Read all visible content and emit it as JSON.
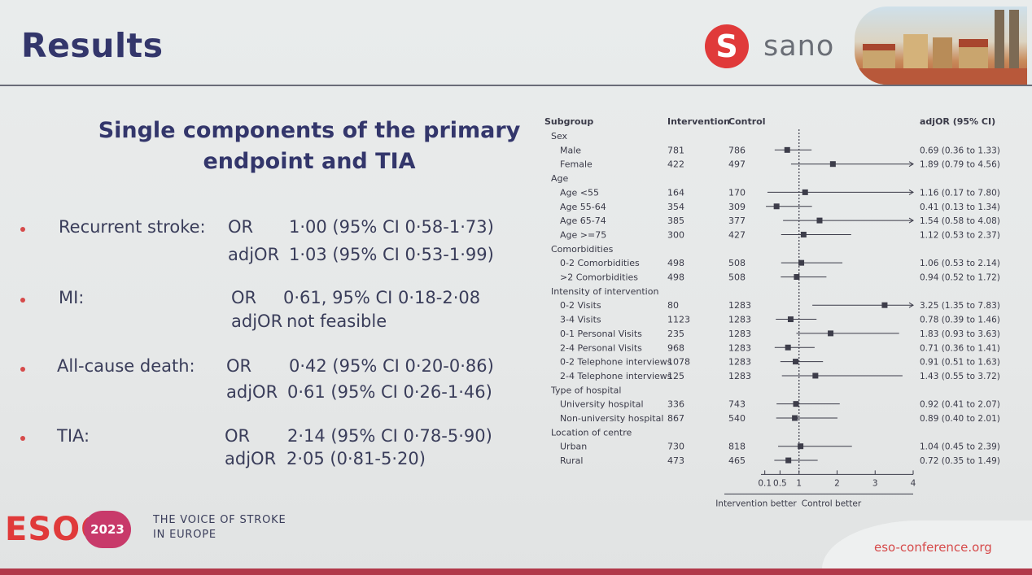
{
  "header": {
    "title": "Results",
    "brand_mark": "S",
    "brand_name": "sano"
  },
  "subtitle_line1": "Single components of the primary",
  "subtitle_line2": "endpoint and TIA",
  "bullets": [
    {
      "label": "Recurrent stroke:",
      "rows": [
        {
          "kind": "OR",
          "value": "1·00 (95% CI 0·58-1·73)"
        },
        {
          "kind": "adjOR",
          "value": "1·03 (95% CI 0·53-1·99)"
        }
      ]
    },
    {
      "label": "MI:",
      "rows": [
        {
          "kind": "OR",
          "value": "0·61, 95% CI 0·18-2·08"
        },
        {
          "kind": "adjOR",
          "value": "not feasible"
        }
      ]
    },
    {
      "label": "All-cause death:",
      "rows": [
        {
          "kind": "OR",
          "value": "0·42 (95% CI 0·20-0·86)"
        },
        {
          "kind": "adjOR",
          "value": "0·61 (95% CI 0·26-1·46)"
        }
      ]
    },
    {
      "label": "TIA:",
      "rows": [
        {
          "kind": "OR",
          "value": "2·14 (95% CI 0·78-5·90)"
        },
        {
          "kind": "adjOR",
          "value": "2·05 (0·81-5·20)"
        }
      ]
    }
  ],
  "chart_data": {
    "type": "forest",
    "columns": {
      "subgroup": "Subgroup",
      "intervention": "Intervention",
      "control": "Control",
      "estimate": "adjOR (95% CI)"
    },
    "rows": [
      {
        "kind": "header",
        "label": "Sex"
      },
      {
        "kind": "item",
        "label": "Male",
        "intervention": "781",
        "control": "786",
        "or": 0.69,
        "lo": 0.36,
        "hi": 1.33,
        "text": "0.69 (0.36 to 1.33)"
      },
      {
        "kind": "item",
        "label": "Female",
        "intervention": "422",
        "control": "497",
        "or": 1.89,
        "lo": 0.79,
        "hi": 4.56,
        "text": "1.89 (0.79 to 4.56)"
      },
      {
        "kind": "header",
        "label": "Age"
      },
      {
        "kind": "item",
        "label": "Age <55",
        "intervention": "164",
        "control": "170",
        "or": 1.16,
        "lo": 0.17,
        "hi": 7.8,
        "text": "1.16 (0.17 to 7.80)"
      },
      {
        "kind": "item",
        "label": "Age 55-64",
        "intervention": "354",
        "control": "309",
        "or": 0.41,
        "lo": 0.13,
        "hi": 1.34,
        "text": "0.41 (0.13 to 1.34)"
      },
      {
        "kind": "item",
        "label": "Age 65-74",
        "intervention": "385",
        "control": "377",
        "or": 1.54,
        "lo": 0.58,
        "hi": 4.08,
        "text": "1.54 (0.58 to 4.08)"
      },
      {
        "kind": "item",
        "label": "Age >=75",
        "intervention": "300",
        "control": "427",
        "or": 1.12,
        "lo": 0.53,
        "hi": 2.37,
        "text": "1.12 (0.53 to 2.37)"
      },
      {
        "kind": "header",
        "label": "Comorbidities"
      },
      {
        "kind": "item",
        "label": "0-2 Comorbidities",
        "intervention": "498",
        "control": "508",
        "or": 1.06,
        "lo": 0.53,
        "hi": 2.14,
        "text": "1.06 (0.53 to 2.14)"
      },
      {
        "kind": "item",
        "label": ">2 Comorbidities",
        "intervention": "498",
        "control": "508",
        "or": 0.94,
        "lo": 0.52,
        "hi": 1.72,
        "text": "0.94 (0.52 to 1.72)"
      },
      {
        "kind": "header",
        "label": "Intensity of intervention"
      },
      {
        "kind": "item",
        "label": "0-2 Visits",
        "intervention": "80",
        "control": "1283",
        "or": 3.25,
        "lo": 1.35,
        "hi": 7.83,
        "text": "3.25 (1.35 to 7.83)"
      },
      {
        "kind": "item",
        "label": "3-4 Visits",
        "intervention": "1123",
        "control": "1283",
        "or": 0.78,
        "lo": 0.39,
        "hi": 1.46,
        "text": "0.78 (0.39 to 1.46)"
      },
      {
        "kind": "item",
        "label": "0-1 Personal Visits",
        "intervention": "235",
        "control": "1283",
        "or": 1.83,
        "lo": 0.93,
        "hi": 3.63,
        "text": "1.83 (0.93 to 3.63)"
      },
      {
        "kind": "item",
        "label": "2-4 Personal Visits",
        "intervention": "968",
        "control": "1283",
        "or": 0.71,
        "lo": 0.36,
        "hi": 1.41,
        "text": "0.71 (0.36 to 1.41)"
      },
      {
        "kind": "item",
        "label": "0-2 Telephone interviews",
        "intervention": "1078",
        "control": "1283",
        "or": 0.91,
        "lo": 0.51,
        "hi": 1.63,
        "text": "0.91 (0.51 to 1.63)"
      },
      {
        "kind": "item",
        "label": "2-4 Telephone interviews",
        "intervention": "125",
        "control": "1283",
        "or": 1.43,
        "lo": 0.55,
        "hi": 3.72,
        "text": "1.43 (0.55 to 3.72)"
      },
      {
        "kind": "header",
        "label": "Type of hospital"
      },
      {
        "kind": "item",
        "label": "University hospital",
        "intervention": "336",
        "control": "743",
        "or": 0.92,
        "lo": 0.41,
        "hi": 2.07,
        "text": "0.92 (0.41 to 2.07)"
      },
      {
        "kind": "item",
        "label": "Non-university hospital",
        "intervention": "867",
        "control": "540",
        "or": 0.89,
        "lo": 0.4,
        "hi": 2.01,
        "text": "0.89 (0.40 to 2.01)"
      },
      {
        "kind": "header",
        "label": "Location of centre"
      },
      {
        "kind": "item",
        "label": "Urban",
        "intervention": "730",
        "control": "818",
        "or": 1.04,
        "lo": 0.45,
        "hi": 2.39,
        "text": "1.04 (0.45 to 2.39)"
      },
      {
        "kind": "item",
        "label": "Rural",
        "intervention": "473",
        "control": "465",
        "or": 0.72,
        "lo": 0.35,
        "hi": 1.49,
        "text": "0.72 (0.35 to 1.49)"
      }
    ],
    "x_ticks": [
      {
        "value": 0.1,
        "label": "0.1"
      },
      {
        "value": 0.5,
        "label": "0.5"
      },
      {
        "value": 1,
        "label": "1"
      },
      {
        "value": 2,
        "label": "2"
      },
      {
        "value": 3,
        "label": "3"
      },
      {
        "value": 4,
        "label": "4"
      }
    ],
    "xlim": [
      0,
      4
    ],
    "reference_line": 1,
    "favours_left": "Intervention better",
    "favours_right": "Control better"
  },
  "footer": {
    "conference": "ESOC",
    "year": "2023",
    "tagline_line1": "THE VOICE OF STROKE",
    "tagline_line2": "IN EUROPE",
    "url": "eso-conference.org"
  },
  "colors": {
    "title": "#33366b",
    "accent": "#e03a3a",
    "marker": "#3d3d4a"
  }
}
